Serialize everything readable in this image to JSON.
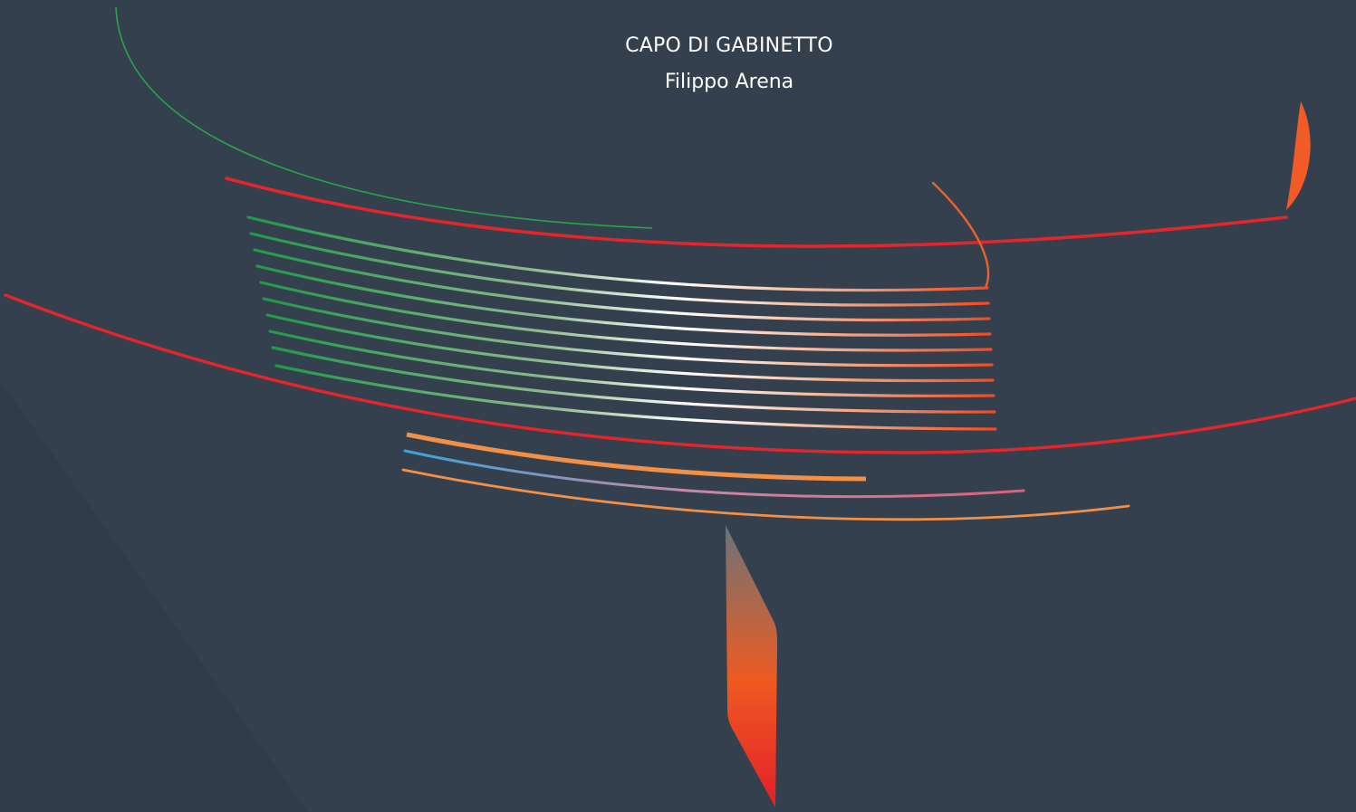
{
  "header": {
    "role": "CAPO DI GABINETTO",
    "name": "Filippo Arena"
  },
  "colors": {
    "background": "#34404d",
    "text": "#ffffff",
    "green": "#1f9a4a",
    "red": "#e3252c",
    "orange": "#f0602a",
    "light_orange": "#f29048",
    "blue": "#3aa3d8",
    "pink": "#e0607a"
  }
}
